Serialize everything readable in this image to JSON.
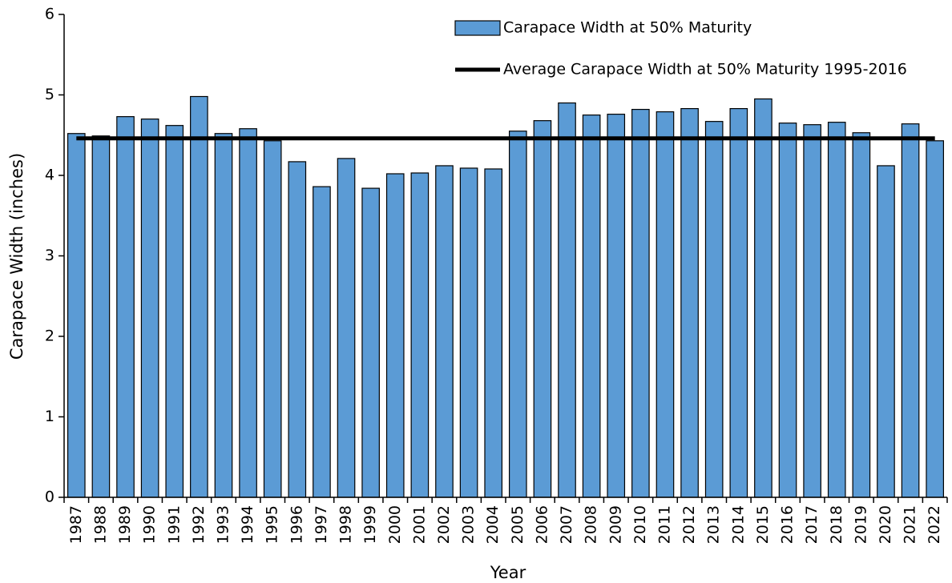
{
  "chart_data": {
    "type": "bar",
    "x_label": "Year",
    "y_label": "Carapace Width (inches)",
    "categories": [
      "1987",
      "1988",
      "1989",
      "1990",
      "1991",
      "1992",
      "1993",
      "1994",
      "1995",
      "1996",
      "1997",
      "1998",
      "1999",
      "2000",
      "2001",
      "2002",
      "2003",
      "2004",
      "2005",
      "2006",
      "2007",
      "2008",
      "2009",
      "2010",
      "2011",
      "2012",
      "2013",
      "2014",
      "2015",
      "2016",
      "2017",
      "2018",
      "2019",
      "2020",
      "2021",
      "2022"
    ],
    "series": [
      {
        "name": "Carapace Width at 50% Maturity",
        "type": "bar",
        "color": "#5b9bd5",
        "values": [
          4.52,
          4.49,
          4.73,
          4.7,
          4.62,
          4.98,
          4.52,
          4.58,
          4.43,
          4.17,
          3.86,
          4.21,
          3.84,
          4.02,
          4.03,
          4.12,
          4.09,
          4.08,
          4.55,
          4.68,
          4.9,
          4.75,
          4.76,
          4.82,
          4.79,
          4.83,
          4.67,
          4.83,
          4.95,
          4.65,
          4.63,
          4.66,
          4.53,
          4.12,
          4.64,
          4.43
        ]
      },
      {
        "name": "Average Carapace Width at 50% Maturity 1995-2016",
        "type": "line",
        "color": "#000000",
        "values": [
          4.46,
          4.46,
          4.46,
          4.46,
          4.46,
          4.46,
          4.46,
          4.46,
          4.46,
          4.46,
          4.46,
          4.46,
          4.46,
          4.46,
          4.46,
          4.46,
          4.46,
          4.46,
          4.46,
          4.46,
          4.46,
          4.46,
          4.46,
          4.46,
          4.46,
          4.46,
          4.46,
          4.46,
          4.46,
          4.46,
          4.46,
          4.46,
          4.46,
          4.46,
          4.46,
          4.46
        ]
      }
    ],
    "ylim": [
      0,
      6
    ],
    "yticks": [
      0,
      1,
      2,
      3,
      4,
      5,
      6
    ],
    "grid": false,
    "legend": "top-right"
  }
}
